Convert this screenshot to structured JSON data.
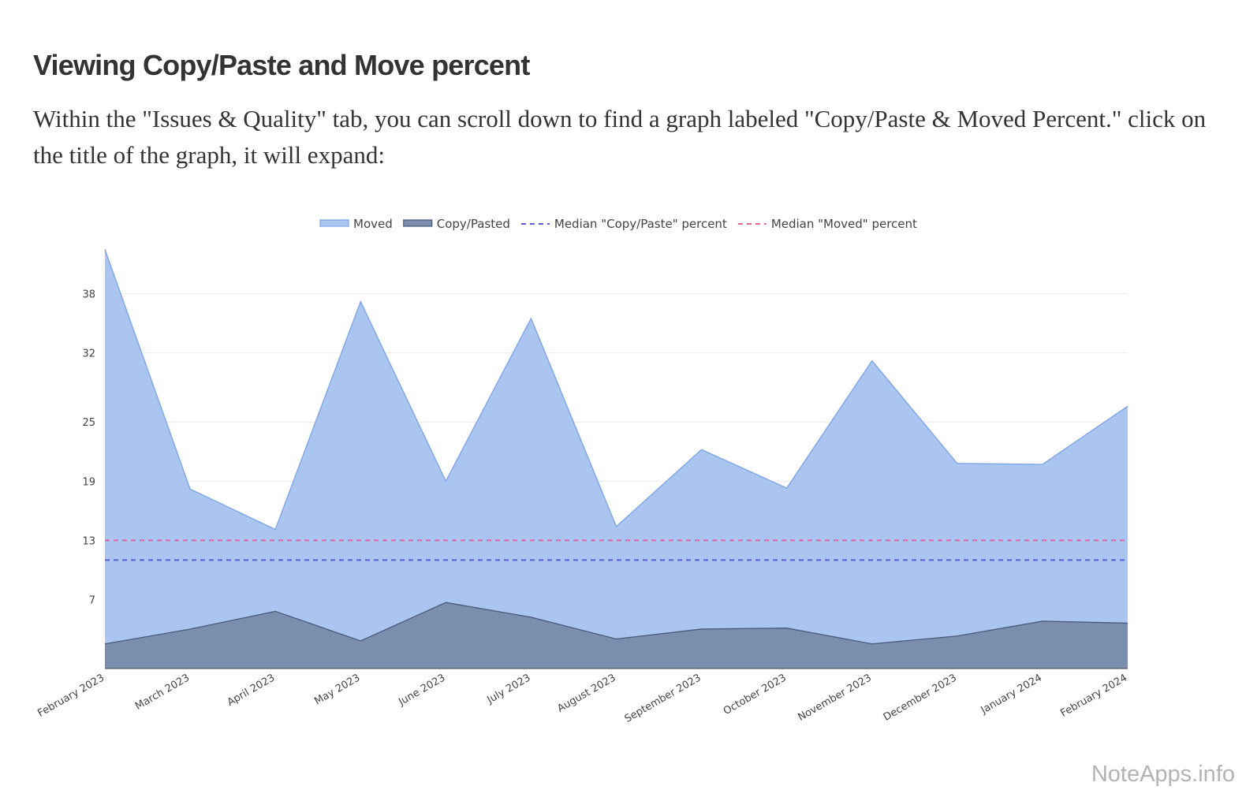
{
  "page": {
    "heading": "Viewing Copy/Paste and Move percent",
    "intro": "Within the \"Issues & Quality\" tab, you can scroll down to find a graph labeled \"Copy/Paste & Moved Percent.\" click on the title of the graph, it will expand:",
    "watermark": "NoteApps.info"
  },
  "chart_data": {
    "type": "area",
    "title": "",
    "xlabel": "",
    "ylabel": "",
    "categories": [
      "February 2023",
      "March 2023",
      "April 2023",
      "May 2023",
      "June 2023",
      "July 2023",
      "August 2023",
      "September 2023",
      "October 2023",
      "November 2023",
      "December 2023",
      "January 2024",
      "February 2024"
    ],
    "series": [
      {
        "name": "Moved",
        "kind": "area",
        "color": "#7aa3e5",
        "fill": "#a9c5f0",
        "values": [
          42.5,
          18.2,
          14.1,
          37.2,
          19.0,
          35.5,
          14.4,
          22.2,
          18.3,
          31.2,
          20.8,
          20.7,
          26.6
        ]
      },
      {
        "name": "Copy/Pasted",
        "kind": "area",
        "color": "#4a5a7a",
        "fill": "#7a8fae",
        "values": [
          2.5,
          4.0,
          5.8,
          2.8,
          6.7,
          5.2,
          3.0,
          4.0,
          4.1,
          2.5,
          3.3,
          4.8,
          4.6
        ]
      },
      {
        "name": "Median \"Copy/Paste\" percent",
        "kind": "dashed-line",
        "color": "#5b5bd6",
        "value": 11.0
      },
      {
        "name": "Median \"Moved\" percent",
        "kind": "dashed-line",
        "color": "#e0649e",
        "value": 13.0
      }
    ],
    "yticks": [
      7,
      13,
      19,
      25,
      32,
      38
    ],
    "ylim": [
      0,
      43
    ],
    "grid": true,
    "legend_position": "top-center"
  }
}
